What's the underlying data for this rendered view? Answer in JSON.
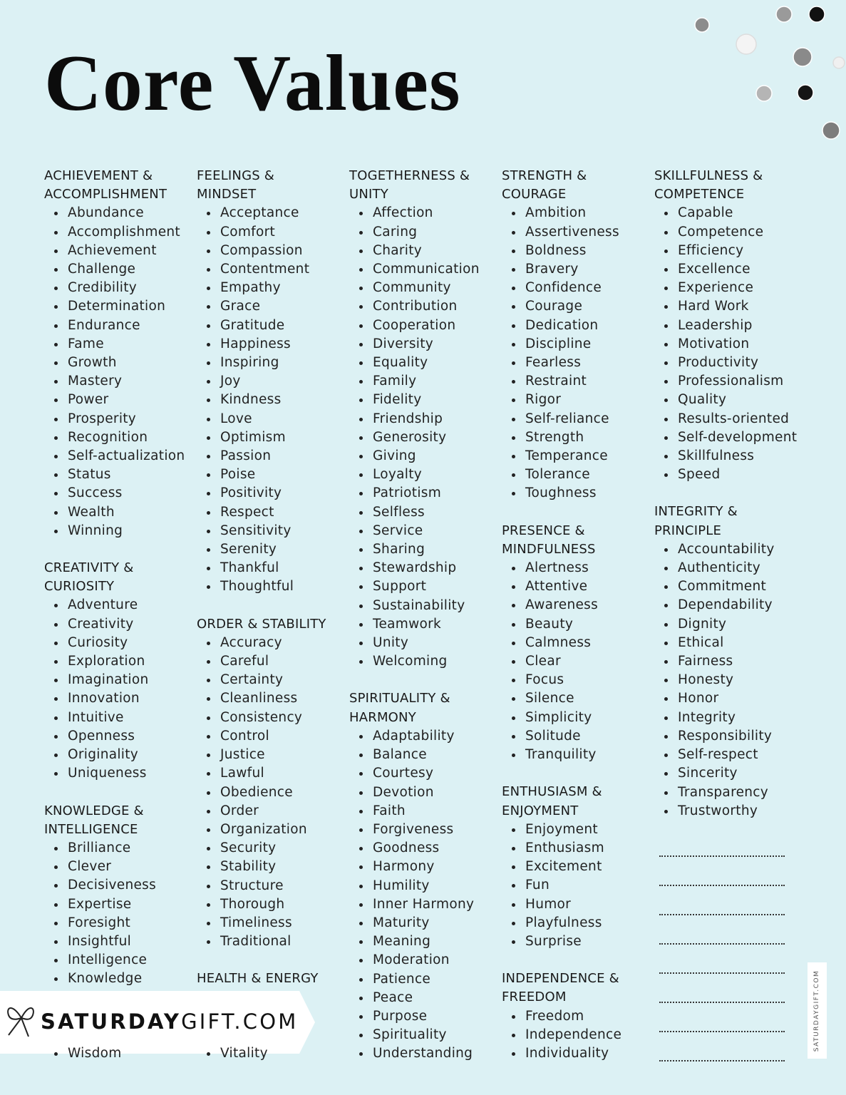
{
  "title": "Core Values",
  "columns": [
    [
      {
        "heading": [
          "ACHIEVEMENT &",
          "ACCOMPLISHMENT"
        ],
        "items": [
          "Abundance",
          "Accomplishment",
          "Achievement",
          "Challenge",
          "Credibility",
          "Determination",
          "Endurance",
          "Fame",
          "Growth",
          "Mastery",
          "Power",
          "Prosperity",
          "Recognition",
          "Self-actualization",
          "Status",
          "Success",
          "Wealth",
          "Winning"
        ]
      },
      {
        "heading": [
          "CREATIVITY &",
          "CURIOSITY"
        ],
        "items": [
          "Adventure",
          "Creativity",
          "Curiosity",
          "Exploration",
          "Imagination",
          "Innovation",
          "Intuitive",
          "Openness",
          "Originality",
          "Uniqueness"
        ]
      },
      {
        "heading": [
          "KNOWLEDGE &",
          "INTELLIGENCE"
        ],
        "items": [
          "Brilliance",
          "Clever",
          "Decisiveness",
          "Expertise",
          "Foresight",
          "Insightful",
          "Intelligence",
          "Knowledge",
          "Wisdom"
        ]
      }
    ],
    [
      {
        "heading": [
          "FEELINGS &",
          "MINDSET"
        ],
        "items": [
          "Acceptance",
          "Comfort",
          "Compassion",
          "Contentment",
          "Empathy",
          "Grace",
          "Gratitude",
          "Happiness",
          "Inspiring",
          "Joy",
          "Kindness",
          "Love",
          "Optimism",
          "Passion",
          "Poise",
          "Positivity",
          "Respect",
          "Sensitivity",
          "Serenity",
          "Thankful",
          "Thoughtful"
        ]
      },
      {
        "heading": [
          "ORDER & STABILITY"
        ],
        "items": [
          "Accuracy",
          "Careful",
          "Certainty",
          "Cleanliness",
          "Consistency",
          "Control",
          "Justice",
          "Lawful",
          "Obedience",
          "Order",
          "Organization",
          "Security",
          "Stability",
          "Structure",
          "Thorough",
          "Timeliness",
          "Traditional"
        ]
      },
      {
        "heading": [
          "HEALTH & ENERGY"
        ],
        "items": [
          "Vitality"
        ]
      }
    ],
    [
      {
        "heading": [
          "TOGETHERNESS &",
          "UNITY"
        ],
        "items": [
          "Affection",
          "Caring",
          "Charity",
          "Communication",
          "Community",
          "Contribution",
          "Cooperation",
          "Diversity",
          "Equality",
          "Family",
          "Fidelity",
          "Friendship",
          "Generosity",
          "Giving",
          "Loyalty",
          "Patriotism",
          "Selfless",
          "Service",
          "Sharing",
          "Stewardship",
          "Support",
          "Sustainability",
          "Teamwork",
          "Unity",
          "Welcoming"
        ]
      },
      {
        "heading": [
          "SPIRITUALITY &",
          "HARMONY"
        ],
        "items": [
          "Adaptability",
          "Balance",
          "Courtesy",
          "Devotion",
          "Faith",
          "Forgiveness",
          "Goodness",
          "Harmony",
          "Humility",
          "Inner Harmony",
          "Maturity",
          "Meaning",
          "Moderation",
          "Patience",
          "Peace",
          "Purpose",
          "Spirituality",
          "Understanding"
        ]
      }
    ],
    [
      {
        "heading": [
          "STRENGTH &",
          "COURAGE"
        ],
        "items": [
          "Ambition",
          "Assertiveness",
          "Boldness",
          "Bravery",
          "Confidence",
          "Courage",
          "Dedication",
          "Discipline",
          "Fearless",
          "Restraint",
          "Rigor",
          "Self-reliance",
          "Strength",
          "Temperance",
          "Tolerance",
          "Toughness"
        ]
      },
      {
        "heading": [
          "PRESENCE &",
          "MINDFULNESS"
        ],
        "items": [
          "Alertness",
          "Attentive",
          "Awareness",
          "Beauty",
          "Calmness",
          "Clear",
          "Focus",
          "Silence",
          "Simplicity",
          "Solitude",
          "Tranquility"
        ]
      },
      {
        "heading": [
          "ENTHUSIASM &",
          "ENJOYMENT"
        ],
        "items": [
          "Enjoyment",
          "Enthusiasm",
          "Excitement",
          "Fun",
          "Humor",
          "Playfulness",
          "Surprise"
        ]
      },
      {
        "heading": [
          "INDEPENDENCE &",
          "FREEDOM"
        ],
        "items": [
          "Freedom",
          "Independence",
          "Individuality"
        ]
      }
    ],
    [
      {
        "heading": [
          "SKILLFULNESS &",
          "COMPETENCE"
        ],
        "items": [
          "Capable",
          "Competence",
          "Efficiency",
          "Excellence",
          "Experience",
          "Hard Work",
          "Leadership",
          "Motivation",
          "Productivity",
          "Professionalism",
          "Quality",
          "Results-oriented",
          "Self-development",
          "Skillfulness",
          "Speed"
        ]
      },
      {
        "heading": [
          "INTEGRITY &",
          "PRINCIPLE"
        ],
        "items": [
          "Accountability",
          "Authenticity",
          "Commitment",
          "Dependability",
          "Dignity",
          "Ethical",
          "Fairness",
          "Honesty",
          "Honor",
          "Integrity",
          "Responsibility",
          "Self-respect",
          "Sincerity",
          "Transparency",
          "Trustworthy"
        ]
      }
    ]
  ],
  "logo": {
    "bold": "SATURDAY",
    "light": "GIFT.COM"
  },
  "side_mark": "SATURDAYGIFT.COM"
}
